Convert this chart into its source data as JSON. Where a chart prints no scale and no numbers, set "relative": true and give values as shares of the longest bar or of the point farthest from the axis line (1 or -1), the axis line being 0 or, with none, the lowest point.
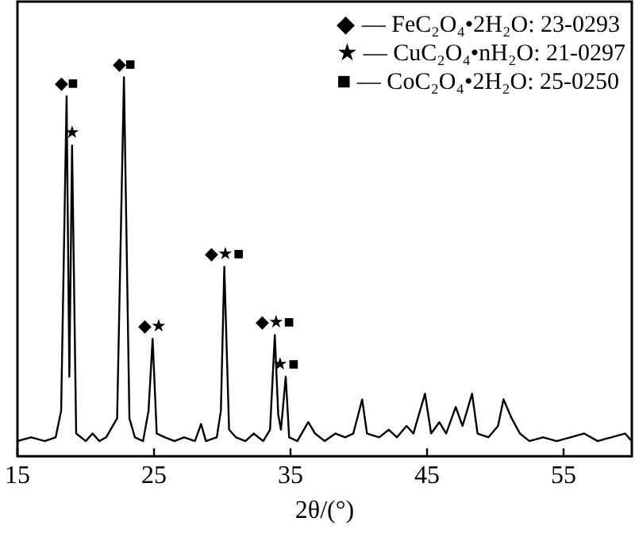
{
  "chart_data": {
    "type": "line",
    "relative": true,
    "xlabel": "2θ/(°)",
    "xlim": [
      15,
      60
    ],
    "xticks": [
      15,
      25,
      35,
      45,
      55
    ],
    "tick_labels": "x",
    "legend": false,
    "marker": "none",
    "line_style": "solid",
    "series": [
      {
        "color": "#000000",
        "x": [
          15,
          16,
          17,
          17.8,
          18.2,
          18.6,
          18.8,
          19.0,
          19.3,
          20,
          20.5,
          21,
          21.5,
          22.3,
          22.8,
          23.2,
          23.6,
          24.2,
          24.6,
          24.9,
          25.2,
          25.8,
          26.5,
          27.2,
          28,
          28.45,
          28.8,
          29.6,
          29.9,
          30.15,
          30.5,
          31,
          31.7,
          32.3,
          33,
          33.5,
          33.85,
          34.1,
          34.3,
          34.65,
          34.9,
          35.5,
          36.3,
          36.8,
          37.5,
          38.3,
          39,
          39.6,
          40.25,
          40.6,
          41.5,
          42.2,
          42.8,
          43.5,
          44,
          44.85,
          45.3,
          45.9,
          46.4,
          47.1,
          47.6,
          48.3,
          48.7,
          49.5,
          50.2,
          50.6,
          51.2,
          51.8,
          52.5,
          53.5,
          54.5,
          55.5,
          56.5,
          57.5,
          58.5,
          59.5,
          60
        ],
        "values": [
          0.04,
          0.05,
          0.04,
          0.05,
          0.12,
          0.95,
          0.21,
          0.82,
          0.06,
          0.04,
          0.06,
          0.04,
          0.05,
          0.1,
          1.0,
          0.1,
          0.05,
          0.04,
          0.12,
          0.31,
          0.06,
          0.05,
          0.04,
          0.05,
          0.04,
          0.085,
          0.04,
          0.05,
          0.12,
          0.5,
          0.07,
          0.05,
          0.04,
          0.06,
          0.04,
          0.07,
          0.32,
          0.11,
          0.07,
          0.21,
          0.05,
          0.04,
          0.09,
          0.06,
          0.04,
          0.06,
          0.05,
          0.06,
          0.15,
          0.06,
          0.05,
          0.07,
          0.05,
          0.08,
          0.06,
          0.165,
          0.06,
          0.09,
          0.06,
          0.13,
          0.08,
          0.165,
          0.06,
          0.05,
          0.08,
          0.15,
          0.1,
          0.06,
          0.04,
          0.05,
          0.04,
          0.05,
          0.06,
          0.04,
          0.05,
          0.06,
          0.04
        ]
      }
    ],
    "annotations": [
      {
        "text": "◆■",
        "x": 18.6,
        "y": 0.95
      },
      {
        "text": "★",
        "x": 19.0,
        "y": 0.82
      },
      {
        "text": "◆■",
        "x": 22.8,
        "y": 1.0
      },
      {
        "text": "◆★",
        "x": 24.9,
        "y": 0.31
      },
      {
        "text": "◆★■",
        "x": 30.15,
        "y": 0.5
      },
      {
        "text": "◆★■",
        "x": 33.85,
        "y": 0.32
      },
      {
        "text": "★■",
        "x": 34.65,
        "y": 0.21
      },
      "◆ — FeC₂O₄•2H₂O: 23-0293",
      "★ — CuC₂O₄•nH₂O: 21-0297",
      "■ — CoC₂O₄•2H₂O: 25-0250"
    ]
  }
}
